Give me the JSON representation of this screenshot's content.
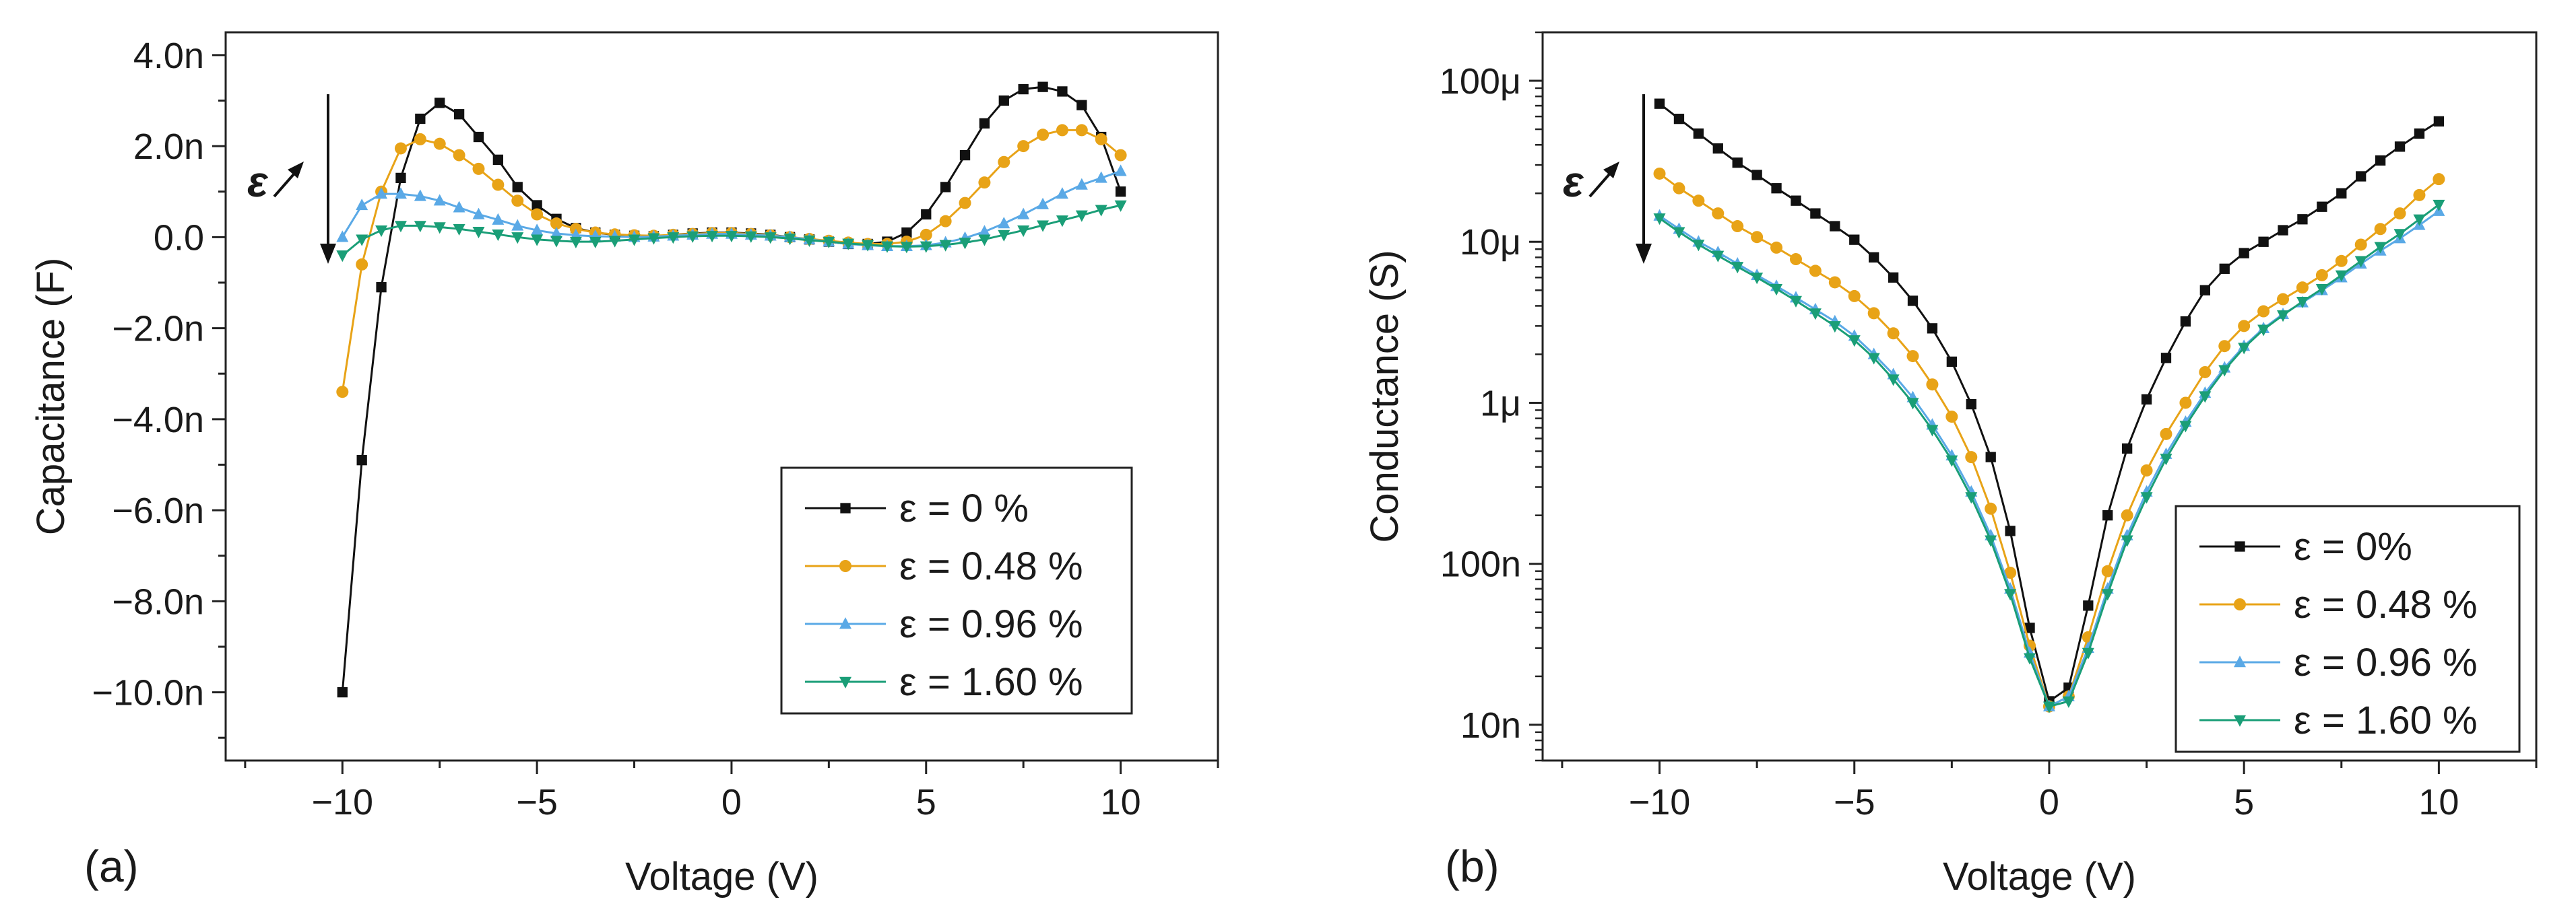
{
  "chart_data": [
    {
      "panel_label": "(a)",
      "type": "line",
      "xlabel": "Voltage (V)",
      "ylabel": "Capacitance (F)",
      "xlim": [
        -13,
        12.5
      ],
      "ylim": [
        -11.5,
        4.5
      ],
      "y_unit_scale": "n",
      "x_ticks": [
        -10,
        -5,
        0,
        5,
        10
      ],
      "x_tick_labels": [
        "−10",
        "−5",
        "0",
        "5",
        "10"
      ],
      "y_ticks": [
        4,
        2,
        0,
        -2,
        -4,
        -6,
        -8,
        -10
      ],
      "y_tick_labels": [
        "4.0n",
        "2.0n",
        "0.0",
        "−2.0n",
        "−4.0n",
        "−6.0n",
        "−8.0n",
        "−10.0n"
      ],
      "annotation": "ε",
      "legend_position": "bottom-right",
      "series": [
        {
          "name": "ε = 0 %",
          "color": "#111111",
          "marker": "square",
          "x": [
            -10,
            -9.5,
            -9,
            -8.5,
            -8,
            -7.5,
            -7,
            -6.5,
            -6,
            -5.5,
            -5,
            -4.5,
            -4,
            -3.5,
            -3,
            -2.5,
            -2,
            -1.5,
            -1,
            -0.5,
            0,
            0.5,
            1,
            1.5,
            2,
            2.5,
            3,
            3.5,
            4,
            4.5,
            5,
            5.5,
            6,
            6.5,
            7,
            7.5,
            8,
            8.5,
            9,
            9.5,
            10
          ],
          "y": [
            -10,
            -4.9,
            -1.1,
            1.3,
            2.6,
            2.95,
            2.7,
            2.2,
            1.7,
            1.1,
            0.7,
            0.4,
            0.2,
            0.1,
            0.05,
            0.03,
            0.02,
            0.05,
            0.08,
            0.1,
            0.1,
            0.08,
            0.05,
            0.0,
            -0.05,
            -0.1,
            -0.15,
            -0.15,
            -0.1,
            0.1,
            0.5,
            1.1,
            1.8,
            2.5,
            3.0,
            3.25,
            3.3,
            3.2,
            2.9,
            2.2,
            1.0
          ]
        },
        {
          "name": "ε = 0.48 %",
          "color": "#e8a317",
          "marker": "circle",
          "x": [
            -10,
            -9.5,
            -9,
            -8.5,
            -8,
            -7.5,
            -7,
            -6.5,
            -6,
            -5.5,
            -5,
            -4.5,
            -4,
            -3.5,
            -3,
            -2.5,
            -2,
            -1.5,
            -1,
            -0.5,
            0,
            0.5,
            1,
            1.5,
            2,
            2.5,
            3,
            3.5,
            4,
            4.5,
            5,
            5.5,
            6,
            6.5,
            7,
            7.5,
            8,
            8.5,
            9,
            9.5,
            10
          ],
          "y": [
            -3.4,
            -0.6,
            1.0,
            1.95,
            2.15,
            2.05,
            1.8,
            1.5,
            1.15,
            0.8,
            0.5,
            0.3,
            0.18,
            0.1,
            0.06,
            0.04,
            0.03,
            0.05,
            0.07,
            0.09,
            0.09,
            0.07,
            0.04,
            0.0,
            -0.04,
            -0.08,
            -0.12,
            -0.15,
            -0.15,
            -0.1,
            0.05,
            0.35,
            0.75,
            1.2,
            1.65,
            2.0,
            2.25,
            2.35,
            2.35,
            2.15,
            1.8
          ]
        },
        {
          "name": "ε = 0.96 %",
          "color": "#5aa9e6",
          "marker": "triangle-up",
          "x": [
            -10,
            -9.5,
            -9,
            -8.5,
            -8,
            -7.5,
            -7,
            -6.5,
            -6,
            -5.5,
            -5,
            -4.5,
            -4,
            -3.5,
            -3,
            -2.5,
            -2,
            -1.5,
            -1,
            -0.5,
            0,
            0.5,
            1,
            1.5,
            2,
            2.5,
            3,
            3.5,
            4,
            4.5,
            5,
            5.5,
            6,
            6.5,
            7,
            7.5,
            8,
            8.5,
            9,
            9.5,
            10
          ],
          "y": [
            0.0,
            0.7,
            0.95,
            0.95,
            0.9,
            0.8,
            0.65,
            0.5,
            0.38,
            0.25,
            0.15,
            0.08,
            0.04,
            0.02,
            0.01,
            0.0,
            0.01,
            0.03,
            0.05,
            0.07,
            0.07,
            0.05,
            0.03,
            0.0,
            -0.05,
            -0.1,
            -0.15,
            -0.18,
            -0.2,
            -0.2,
            -0.18,
            -0.12,
            -0.02,
            0.12,
            0.3,
            0.5,
            0.72,
            0.95,
            1.15,
            1.3,
            1.45
          ]
        },
        {
          "name": "ε = 1.60 %",
          "color": "#1a9e77",
          "marker": "triangle-down",
          "x": [
            -10,
            -9.5,
            -9,
            -8.5,
            -8,
            -7.5,
            -7,
            -6.5,
            -6,
            -5.5,
            -5,
            -4.5,
            -4,
            -3.5,
            -3,
            -2.5,
            -2,
            -1.5,
            -1,
            -0.5,
            0,
            0.5,
            1,
            1.5,
            2,
            2.5,
            3,
            3.5,
            4,
            4.5,
            5,
            5.5,
            6,
            6.5,
            7,
            7.5,
            8,
            8.5,
            9,
            9.5,
            10
          ],
          "y": [
            -0.4,
            -0.05,
            0.15,
            0.25,
            0.25,
            0.22,
            0.18,
            0.12,
            0.06,
            0.0,
            -0.05,
            -0.08,
            -0.1,
            -0.1,
            -0.08,
            -0.05,
            -0.02,
            0.0,
            0.02,
            0.03,
            0.03,
            0.02,
            0.0,
            -0.03,
            -0.07,
            -0.1,
            -0.14,
            -0.17,
            -0.2,
            -0.21,
            -0.2,
            -0.17,
            -0.12,
            -0.05,
            0.05,
            0.15,
            0.26,
            0.37,
            0.48,
            0.6,
            0.7
          ]
        }
      ]
    },
    {
      "panel_label": "(b)",
      "type": "line",
      "xlabel": "Voltage (V)",
      "ylabel": "Conductance (S)",
      "xlim": [
        -13,
        12.5
      ],
      "ylim": [
        6e-09,
        0.0002
      ],
      "yscale": "log",
      "x_ticks": [
        -10,
        -5,
        0,
        5,
        10
      ],
      "x_tick_labels": [
        "−10",
        "−5",
        "0",
        "5",
        "10"
      ],
      "y_ticks": [
        0.0001,
        1e-05,
        1e-06,
        1e-07,
        1e-08
      ],
      "y_tick_labels": [
        "100μ",
        "10μ",
        "1μ",
        "100n",
        "10n"
      ],
      "annotation": "ε",
      "legend_position": "bottom-right",
      "series": [
        {
          "name": "ε = 0%",
          "color": "#111111",
          "marker": "square",
          "x": [
            -10,
            -9.5,
            -9,
            -8.5,
            -8,
            -7.5,
            -7,
            -6.5,
            -6,
            -5.5,
            -5,
            -4.5,
            -4,
            -3.5,
            -3,
            -2.5,
            -2,
            -1.5,
            -1,
            -0.5,
            0,
            0.5,
            1,
            1.5,
            2,
            2.5,
            3,
            3.5,
            4,
            4.5,
            5,
            5.5,
            6,
            6.5,
            7,
            7.5,
            8,
            8.5,
            9,
            9.5,
            10
          ],
          "y": [
            7.2e-05,
            5.8e-05,
            4.7e-05,
            3.8e-05,
            3.1e-05,
            2.6e-05,
            2.15e-05,
            1.8e-05,
            1.5e-05,
            1.25e-05,
            1.03e-05,
            8e-06,
            6e-06,
            4.3e-06,
            2.9e-06,
            1.8e-06,
            9.8e-07,
            4.6e-07,
            1.6e-07,
            4e-08,
            1.4e-08,
            1.7e-08,
            5.5e-08,
            2e-07,
            5.2e-07,
            1.05e-06,
            1.9e-06,
            3.2e-06,
            5e-06,
            6.8e-06,
            8.5e-06,
            1e-05,
            1.18e-05,
            1.38e-05,
            1.65e-05,
            2e-05,
            2.55e-05,
            3.2e-05,
            3.9e-05,
            4.7e-05,
            5.6e-05
          ]
        },
        {
          "name": "ε = 0.48 %",
          "color": "#e8a317",
          "marker": "circle",
          "x": [
            -10,
            -9.5,
            -9,
            -8.5,
            -8,
            -7.5,
            -7,
            -6.5,
            -6,
            -5.5,
            -5,
            -4.5,
            -4,
            -3.5,
            -3,
            -2.5,
            -2,
            -1.5,
            -1,
            -0.5,
            0,
            0.5,
            1,
            1.5,
            2,
            2.5,
            3,
            3.5,
            4,
            4.5,
            5,
            5.5,
            6,
            6.5,
            7,
            7.5,
            8,
            8.5,
            9,
            9.5,
            10
          ],
          "y": [
            2.65e-05,
            2.15e-05,
            1.8e-05,
            1.5e-05,
            1.25e-05,
            1.07e-05,
            9.2e-06,
            7.8e-06,
            6.6e-06,
            5.6e-06,
            4.6e-06,
            3.6e-06,
            2.7e-06,
            1.95e-06,
            1.3e-06,
            8.2e-07,
            4.6e-07,
            2.2e-07,
            8.8e-08,
            3.1e-08,
            1.3e-08,
            1.5e-08,
            3.5e-08,
            9e-08,
            2e-07,
            3.8e-07,
            6.4e-07,
            1e-06,
            1.55e-06,
            2.25e-06,
            3e-06,
            3.7e-06,
            4.4e-06,
            5.2e-06,
            6.2e-06,
            7.6e-06,
            9.6e-06,
            1.2e-05,
            1.5e-05,
            1.95e-05,
            2.45e-05
          ]
        },
        {
          "name": "ε = 0.96 %",
          "color": "#5aa9e6",
          "marker": "triangle-up",
          "x": [
            -10,
            -9.5,
            -9,
            -8.5,
            -8,
            -7.5,
            -7,
            -6.5,
            -6,
            -5.5,
            -5,
            -4.5,
            -4,
            -3.5,
            -3,
            -2.5,
            -2,
            -1.5,
            -1,
            -0.5,
            0,
            0.5,
            1,
            1.5,
            2,
            2.5,
            3,
            3.5,
            4,
            4.5,
            5,
            5.5,
            6,
            6.5,
            7,
            7.5,
            8,
            8.5,
            9,
            9.5,
            10
          ],
          "y": [
            1.45e-05,
            1.2e-05,
            1e-05,
            8.6e-06,
            7.3e-06,
            6.2e-06,
            5.3e-06,
            4.5e-06,
            3.8e-06,
            3.2e-06,
            2.6e-06,
            2e-06,
            1.5e-06,
            1.08e-06,
            7.3e-07,
            4.7e-07,
            2.8e-07,
            1.5e-07,
            7e-08,
            2.8e-08,
            1.3e-08,
            1.5e-08,
            3e-08,
            7e-08,
            1.5e-07,
            2.8e-07,
            4.8e-07,
            7.6e-07,
            1.15e-06,
            1.65e-06,
            2.25e-06,
            2.9e-06,
            3.55e-06,
            4.2e-06,
            5e-06,
            6e-06,
            7.3e-06,
            8.8e-06,
            1.05e-05,
            1.27e-05,
            1.55e-05
          ]
        },
        {
          "name": "ε = 1.60 %",
          "color": "#1a9e77",
          "marker": "triangle-down",
          "x": [
            -10,
            -9.5,
            -9,
            -8.5,
            -8,
            -7.5,
            -7,
            -6.5,
            -6,
            -5.5,
            -5,
            -4.5,
            -4,
            -3.5,
            -3,
            -2.5,
            -2,
            -1.5,
            -1,
            -0.5,
            0,
            0.5,
            1,
            1.5,
            2,
            2.5,
            3,
            3.5,
            4,
            4.5,
            5,
            5.5,
            6,
            6.5,
            7,
            7.5,
            8,
            8.5,
            9,
            9.5,
            10
          ],
          "y": [
            1.4e-05,
            1.15e-05,
            9.6e-06,
            8.2e-06,
            7e-06,
            6e-06,
            5.1e-06,
            4.3e-06,
            3.6e-06,
            3e-06,
            2.45e-06,
            1.9e-06,
            1.4e-06,
            1e-06,
            6.8e-07,
            4.4e-07,
            2.6e-07,
            1.4e-07,
            6.5e-08,
            2.6e-08,
            1.3e-08,
            1.4e-08,
            2.8e-08,
            6.5e-08,
            1.4e-07,
            2.6e-07,
            4.5e-07,
            7.2e-07,
            1.1e-06,
            1.6e-06,
            2.2e-06,
            2.85e-06,
            3.5e-06,
            4.25e-06,
            5.1e-06,
            6.2e-06,
            7.6e-06,
            9.3e-06,
            1.12e-05,
            1.38e-05,
            1.7e-05
          ]
        }
      ]
    }
  ]
}
